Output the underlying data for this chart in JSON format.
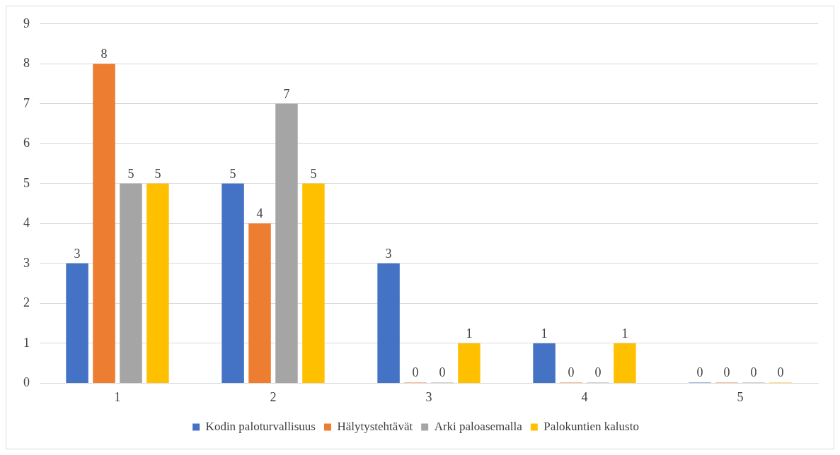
{
  "chart_data": {
    "type": "bar",
    "categories": [
      "1",
      "2",
      "3",
      "4",
      "5"
    ],
    "series": [
      {
        "name": "Kodin paloturvallisuus",
        "color": "#4472c4",
        "values": [
          3,
          5,
          3,
          1,
          0
        ]
      },
      {
        "name": "Hälytystehtävät",
        "color": "#ed7d31",
        "values": [
          8,
          4,
          0,
          0,
          0
        ]
      },
      {
        "name": "Arki paloasemalla",
        "color": "#a5a5a5",
        "values": [
          5,
          7,
          0,
          0,
          0
        ]
      },
      {
        "name": "Palokuntien kalusto",
        "color": "#ffc000",
        "values": [
          5,
          5,
          1,
          1,
          0
        ]
      }
    ],
    "ylim": [
      0,
      9
    ],
    "yticks": [
      0,
      1,
      2,
      3,
      4,
      5,
      6,
      7,
      8,
      9
    ],
    "grid": "y",
    "legend": "bottom",
    "data_labels": true
  }
}
